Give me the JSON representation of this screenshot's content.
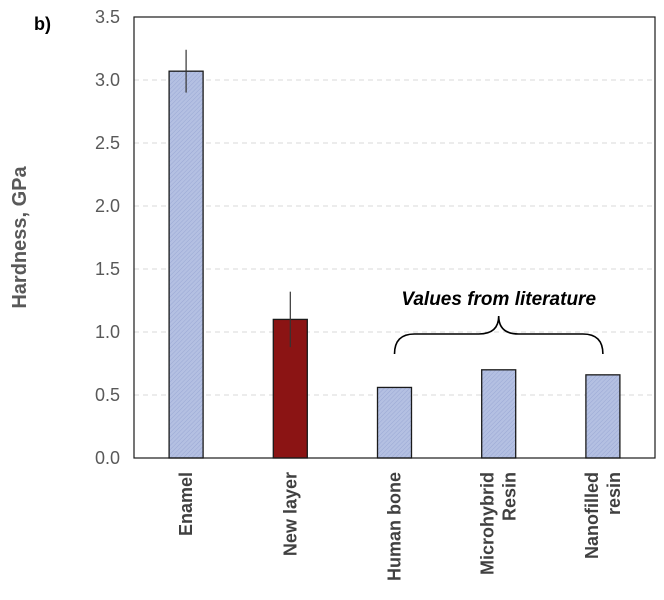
{
  "panel_label": "b)",
  "chart_data": {
    "type": "bar",
    "categories": [
      [
        "Enamel"
      ],
      [
        "New layer"
      ],
      [
        "Human bone"
      ],
      [
        "Microhybrid",
        "Resin"
      ],
      [
        "Nanofilled",
        "resin"
      ]
    ],
    "values": [
      3.07,
      1.1,
      0.56,
      0.7,
      0.66
    ],
    "error": [
      0.17,
      0.22,
      null,
      null,
      null
    ],
    "title": "",
    "xlabel": "",
    "ylabel": "Hardness, GPa",
    "ylim": [
      0,
      3.5
    ],
    "yticks": [
      0.0,
      0.5,
      1.0,
      1.5,
      2.0,
      2.5,
      3.0,
      3.5
    ],
    "ytick_labels": [
      "0.0",
      "0.5",
      "1.0",
      "1.5",
      "2.0",
      "2.5",
      "3.0",
      "3.5"
    ],
    "grid": "horizontal-dashed",
    "bar_colors": [
      "#b4c0e2",
      "#8b1414",
      "#b4c0e2",
      "#b4c0e2",
      "#b4c0e2"
    ],
    "annotation": {
      "text": "Values from literature",
      "spans_categories": [
        2,
        4
      ]
    }
  }
}
